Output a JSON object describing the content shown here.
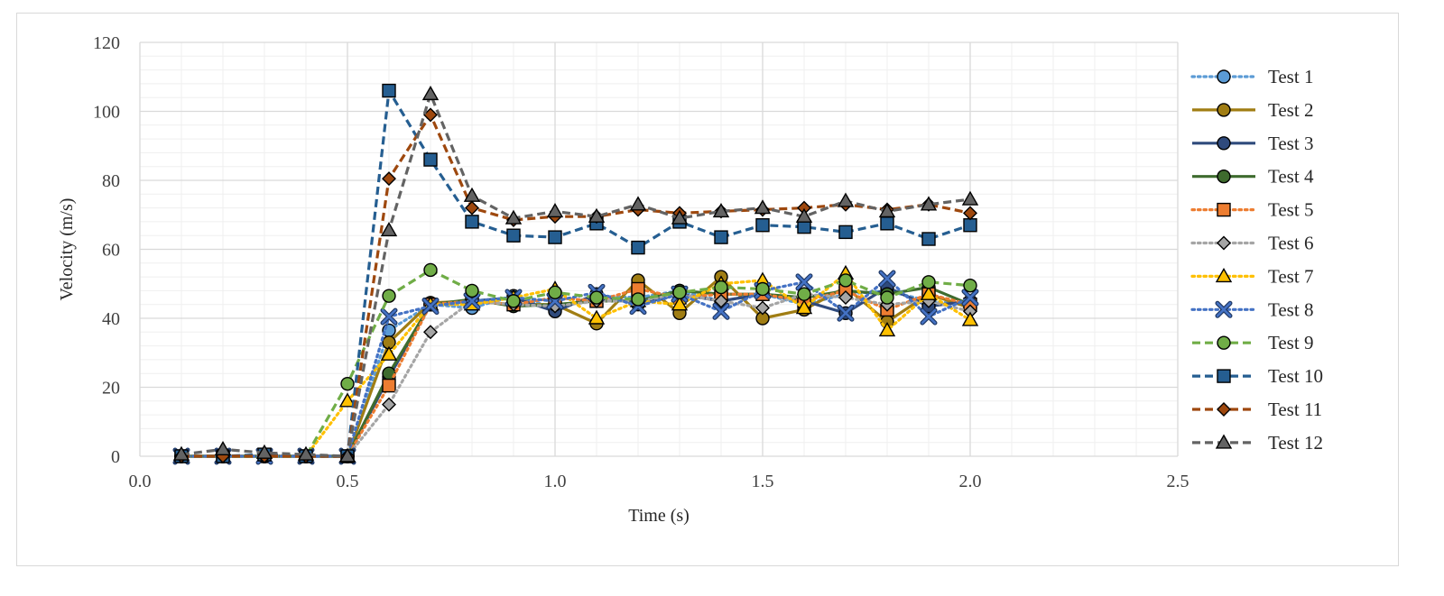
{
  "chart_data": {
    "type": "line",
    "title": "",
    "xlabel": "Time (s)",
    "ylabel": "Velocity (m/s)",
    "xlim": [
      0.0,
      2.5
    ],
    "ylim": [
      0,
      120
    ],
    "x_ticks": [
      "0.0",
      "0.5",
      "1.0",
      "1.5",
      "2.0",
      "2.5"
    ],
    "y_ticks": [
      "0",
      "20",
      "40",
      "60",
      "80",
      "100",
      "120"
    ],
    "grid": true,
    "legend_position": "right",
    "x": [
      0.1,
      0.2,
      0.3,
      0.4,
      0.5,
      0.6,
      0.7,
      0.8,
      0.9,
      1.0,
      1.1,
      1.2,
      1.3,
      1.4,
      1.5,
      1.6,
      1.7,
      1.8,
      1.9,
      2.0
    ],
    "series": [
      {
        "name": "Test 1",
        "color": "#5b9bd5",
        "dash": "dot",
        "marker": "circle",
        "values": [
          0,
          0,
          0,
          0,
          0,
          36.5,
          44,
          43,
          46.5,
          43,
          46.5,
          46,
          48,
          45,
          47,
          44,
          47,
          48,
          45,
          44
        ]
      },
      {
        "name": "Test 2",
        "color": "#a07d13",
        "dash": "solid",
        "marker": "circle",
        "values": [
          0,
          0,
          0,
          0,
          0,
          33,
          44.5,
          45,
          44,
          44,
          38.5,
          51,
          41.5,
          52,
          40,
          42.5,
          49,
          39,
          47,
          43
        ]
      },
      {
        "name": "Test 3",
        "color": "#2f4a7c",
        "dash": "solid",
        "marker": "circle",
        "values": [
          0,
          0,
          0,
          0,
          0,
          23,
          44,
          45,
          46,
          42,
          47,
          44,
          47,
          45,
          47,
          45,
          41.5,
          49,
          43.5,
          45
        ]
      },
      {
        "name": "Test 4",
        "color": "#3e6b2e",
        "dash": "solid",
        "marker": "circle",
        "values": [
          0,
          0,
          0,
          0,
          0,
          24,
          44,
          45.5,
          43.5,
          44,
          45,
          45,
          48,
          47,
          47,
          46,
          48,
          47,
          49,
          44
        ]
      },
      {
        "name": "Test 5",
        "color": "#ed7d31",
        "dash": "dot",
        "marker": "square",
        "values": [
          0,
          0,
          0,
          0,
          0,
          20.5,
          44,
          45,
          44,
          46,
          45,
          48.5,
          46,
          47,
          47,
          45,
          48,
          42.5,
          47,
          44
        ]
      },
      {
        "name": "Test 6",
        "color": "#a5a5a5",
        "dash": "dot",
        "marker": "diamond",
        "values": [
          0,
          0,
          0,
          0,
          0,
          15,
          36,
          45,
          44,
          43.5,
          45,
          45,
          47,
          45,
          43,
          47,
          46,
          44,
          45,
          42
        ]
      },
      {
        "name": "Test 7",
        "color": "#ffc000",
        "dash": "dot",
        "marker": "triangle",
        "values": [
          0,
          0,
          0,
          0,
          16,
          29.5,
          44,
          44,
          46,
          48.5,
          40,
          45,
          44,
          50,
          51,
          43,
          53,
          36.5,
          47,
          39.5
        ]
      },
      {
        "name": "Test 8",
        "color": "#4472c4",
        "dash": "dot",
        "marker": "x",
        "values": [
          0,
          0,
          0,
          0,
          0,
          40.5,
          43.5,
          45,
          46,
          45,
          47.5,
          43.5,
          47,
          42,
          48,
          50.5,
          41.5,
          51.5,
          40.5,
          46
        ]
      },
      {
        "name": "Test 9",
        "color": "#70ad47",
        "dash": "dash",
        "marker": "circle",
        "values": [
          0,
          0,
          0,
          0,
          21,
          46.5,
          54,
          48,
          45,
          47.5,
          46,
          45.5,
          47.5,
          49,
          48.5,
          47,
          51,
          46,
          50.5,
          49.5
        ]
      },
      {
        "name": "Test 10",
        "color": "#255e91",
        "dash": "dash",
        "marker": "square",
        "values": [
          0,
          0,
          0.5,
          0,
          0,
          106,
          86,
          68,
          64,
          63.5,
          67.5,
          60.5,
          68,
          63.5,
          67,
          66.5,
          65,
          67.5,
          63,
          67
        ]
      },
      {
        "name": "Test 11",
        "color": "#9e480e",
        "dash": "dash",
        "marker": "diamond",
        "values": [
          0,
          0,
          0,
          0,
          0,
          80.5,
          99,
          72,
          68.5,
          69.5,
          69.5,
          71.5,
          70.5,
          71,
          71.5,
          72,
          73,
          71.5,
          73,
          70.5
        ]
      },
      {
        "name": "Test 12",
        "color": "#636363",
        "dash": "dash",
        "marker": "triangle",
        "values": [
          0.5,
          2,
          1,
          0.5,
          0,
          65.5,
          105,
          75.5,
          69,
          71,
          69.5,
          73,
          69,
          71,
          72,
          69.5,
          74,
          71,
          73,
          74.5
        ]
      }
    ]
  }
}
